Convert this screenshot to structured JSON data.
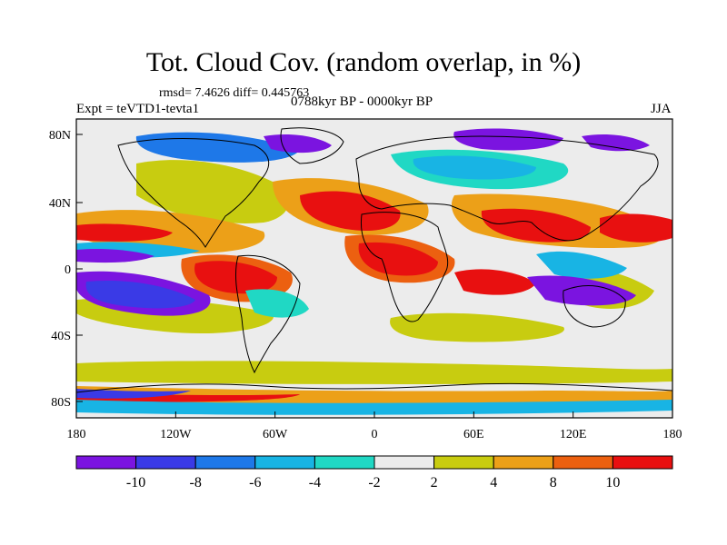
{
  "header": {
    "title": "Tot. Cloud Cov. (random overlap, in %)",
    "stats": "rmsd= 7.4626 diff= 0.445763",
    "experiment": "Expt = teVTD1-tevta1",
    "period": "0788kyr BP - 0000kyr BP",
    "season": "JJA"
  },
  "map": {
    "x_ticks": [
      "180",
      "120W",
      "60W",
      "0",
      "60E",
      "120E",
      "180"
    ],
    "y_ticks": [
      "80N",
      "40N",
      "0",
      "40S",
      "80S"
    ]
  },
  "legend": {
    "labels": [
      "-10",
      "-8",
      "-6",
      "-4",
      "-2",
      "2",
      "4",
      "8",
      "10"
    ],
    "colors": [
      "#7b14e0",
      "#3a3ae6",
      "#1e78e8",
      "#18b4e4",
      "#20d8c4",
      "#ececec",
      "#c8cc10",
      "#eca018",
      "#ec6010",
      "#e81010"
    ]
  },
  "colors": {
    "strong_decrease": "#7b14e0",
    "decrease": "#1e78e8",
    "neutral": "#ececec",
    "increase": "#eca018",
    "strong_increase": "#e81010"
  }
}
